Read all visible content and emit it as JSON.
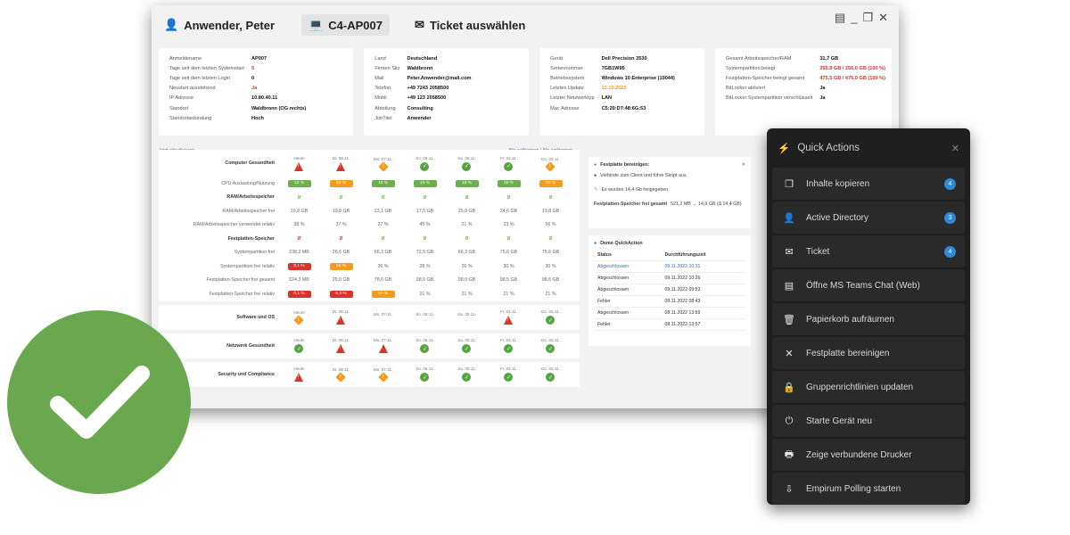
{
  "header": {
    "user_name": "Anwender, Peter",
    "device": "C4-AP007",
    "ticket_label": "Ticket auswählen"
  },
  "card1": [
    {
      "k": "Anmeldename",
      "v": "AP007",
      "c": ""
    },
    {
      "k": "Tage seit dem letzten Systemstart",
      "v": "5",
      "c": "red"
    },
    {
      "k": "Tage seit dem letzten Login",
      "v": "0",
      "c": ""
    },
    {
      "k": "Neustart ausstehend",
      "v": "Ja",
      "c": "red"
    },
    {
      "k": "IP Adresse",
      "v": "10.80.40.11",
      "c": ""
    },
    {
      "k": "Standort",
      "v": "Waldbronn (OG rechts)",
      "c": ""
    },
    {
      "k": "Standortanbindung",
      "v": "Hoch",
      "c": ""
    }
  ],
  "card2": [
    {
      "k": "Land",
      "v": "Deutschland"
    },
    {
      "k": "Firmen Sitz",
      "v": "Waldbronn"
    },
    {
      "k": "Mail",
      "v": "Peter.Anwender@mail.com"
    },
    {
      "k": "Telefon",
      "v": "+49 7243 2058500"
    },
    {
      "k": "Mobil",
      "v": "+49 123 2058500"
    },
    {
      "k": "Abteilung",
      "v": "Consulting"
    },
    {
      "k": "JobTitel",
      "v": "Anwender"
    }
  ],
  "card3": [
    {
      "k": "Gerät",
      "v": "Dell Precision 3530",
      "c": ""
    },
    {
      "k": "Seriennummer",
      "v": "7GB1W95",
      "c": ""
    },
    {
      "k": "Betriebssystem",
      "v": "Windows 10 Enterprise (19044)",
      "c": ""
    },
    {
      "k": "Letztes Update",
      "v": "12.10.2022",
      "c": "orange"
    },
    {
      "k": "Letzter Netzwerktyp",
      "v": "LAN",
      "c": ""
    },
    {
      "k": "Mac Adresse",
      "v": "C5:20:D7:48:6G:53",
      "c": ""
    }
  ],
  "card4": [
    {
      "k": "Gesamt Arbeitsspeicher/RAM",
      "v": "31,7 GB",
      "c": ""
    },
    {
      "k": "Systempartition belegt",
      "v": "255,8 GB / 256,0 GB (100 %)",
      "c": "red"
    },
    {
      "k": "Festplatten-Speicher belegt gesamt",
      "v": "475,5 GB / 476,0 GB (100 %)",
      "c": "red"
    },
    {
      "k": "BitLocker aktiviert",
      "v": "Ja",
      "c": ""
    },
    {
      "k": "BitLocker Systempartition verschlüsselt",
      "v": "Ja",
      "c": ""
    }
  ],
  "subbar": {
    "left": "Jetzt aktualisieren",
    "right": "Alle aufklappen | Alle einklappen"
  },
  "dates": [
    "Heute",
    "Di. 08.11.",
    "Mo. 07.11.",
    "So. 06.11.",
    "Sa. 05.11.",
    "Fr. 04.11.",
    "Do. 03.11."
  ],
  "health": {
    "title": "Computer Gesundheit",
    "status": [
      "tri",
      "tri",
      "warn",
      "ok",
      "ok",
      "ok",
      "warn"
    ],
    "rows": [
      {
        "label": "CPU Auslastung/Nutzung",
        "type": "pill",
        "values": [
          [
            "12 %",
            "g"
          ],
          [
            "20 %",
            "o"
          ],
          [
            "18 %",
            "g"
          ],
          [
            "15 %",
            "g"
          ],
          [
            "18 %",
            "g"
          ],
          [
            "19 %",
            "g"
          ],
          [
            "20 %",
            "o"
          ]
        ]
      },
      {
        "label": "RAM/Arbeitsspeicher",
        "type": "leaf",
        "head": true,
        "values": [
          "g",
          "g",
          "g",
          "g",
          "g",
          "g",
          "g"
        ]
      },
      {
        "label": "RAM/Arbeitsspeicher frei",
        "type": "text",
        "values": [
          "19,8 GB",
          "19,8 GB",
          "23,1 GB",
          "17,5 GB",
          "25,0 GB",
          "24,6 GB",
          "13,8 GB"
        ]
      },
      {
        "label": "RAM/Arbeitsspeicher verwendet relativ",
        "type": "text",
        "values": [
          "38 %",
          "37 %",
          "27 %",
          "45 %",
          "21 %",
          "23 %",
          "56 %"
        ]
      },
      {
        "label": "Festplatten-Speicher",
        "type": "leaf",
        "head": true,
        "values": [
          "r",
          "r",
          "g",
          "g",
          "g",
          "g",
          "g"
        ]
      },
      {
        "label": "Systempartition frei",
        "type": "text",
        "values": [
          "238,2 MB",
          "26,6 GB",
          "66,3 GB",
          "72,5 GB",
          "66,3 GB",
          "75,6 GB",
          "75,6 GB"
        ]
      },
      {
        "label": "Systempartition frei relativ",
        "type": "mixed",
        "values": [
          [
            "0,1 %",
            "r"
          ],
          [
            "10 %",
            "o"
          ],
          [
            "26 %",
            ""
          ],
          [
            "28 %",
            ""
          ],
          [
            "26 %",
            ""
          ],
          [
            "30 %",
            ""
          ],
          [
            "30 %",
            ""
          ]
        ]
      },
      {
        "label": "Festplatten-Speicher frei gesamt",
        "type": "text",
        "values": [
          "524,3 MB",
          "25,0 GB",
          "78,6 GB",
          "98,5 GB",
          "98,0 GB",
          "98,5 GB",
          "98,6 GB"
        ]
      },
      {
        "label": "Festplatten-Speicher frei relativ",
        "type": "mixed",
        "values": [
          [
            "0,1 %",
            "r"
          ],
          [
            "5,3 %",
            "r"
          ],
          [
            "17 %",
            "o"
          ],
          [
            "21 %",
            ""
          ],
          [
            "21 %",
            ""
          ],
          [
            "21 %",
            ""
          ],
          [
            "21 %",
            ""
          ]
        ]
      }
    ]
  },
  "sections": [
    {
      "title": "Software und OS",
      "status": [
        "warn",
        "tri",
        "dash",
        "dash",
        "dash",
        "tri",
        "ok"
      ]
    },
    {
      "title": "Netzwerk Gesundheit",
      "status": [
        "ok",
        "tri",
        "tri",
        "ok",
        "ok",
        "ok",
        "ok"
      ]
    },
    {
      "title": "Security und Compliance",
      "status": [
        "tri",
        "warn",
        "warn",
        "ok",
        "ok",
        "ok",
        "ok"
      ]
    }
  ],
  "cleanup": {
    "title": "Festplatte bereinigen:",
    "step": "Verbinde zum Client und führe Skript aus.",
    "freed": "Es wurden 14,4 Gb freigegeben.",
    "total_label": "Festplatten-Speicher frei gesamt",
    "total_value": "521,2 MB → 14,9 GB (Δ 14,4 GB)"
  },
  "demo": {
    "title": "Demo QuickAction",
    "col_status": "Status",
    "col_time": "Durchführungszeit",
    "rows": [
      {
        "s": "Abgeschlossen",
        "t": "09.11.2022 10:31",
        "link": true
      },
      {
        "s": "Abgeschlossen",
        "t": "09.11.2022 10:26",
        "link": false
      },
      {
        "s": "Abgeschlossen",
        "t": "09.11.2022 09:53",
        "link": false
      },
      {
        "s": "Fehler",
        "t": "09.11.2022 08:43",
        "link": false
      },
      {
        "s": "Abgeschlossen",
        "t": "08.11.2022 13:59",
        "link": false
      },
      {
        "s": "Fehler",
        "t": "08.11.2022 13:57",
        "link": false
      }
    ]
  },
  "quick_actions": {
    "title": "Quick Actions",
    "items": [
      {
        "label": "Inhalte kopieren",
        "icon": "copy-icon",
        "glyph": "❐",
        "badge": "4"
      },
      {
        "label": "Active Directory",
        "icon": "user-icon",
        "glyph": "👤",
        "badge": "3"
      },
      {
        "label": "Ticket",
        "icon": "mail-icon",
        "glyph": "✉",
        "badge": "4"
      },
      {
        "label": "Öffne MS Teams Chat (Web)",
        "icon": "chat-icon",
        "glyph": "▤",
        "badge": ""
      },
      {
        "label": "Papierkorb aufräumen",
        "icon": "trash-icon",
        "glyph": "🗑",
        "badge": ""
      },
      {
        "label": "Festplatte bereinigen",
        "icon": "tools-icon",
        "glyph": "✕",
        "badge": ""
      },
      {
        "label": "Gruppenrichtlinien updaten",
        "icon": "lock-icon",
        "glyph": "🔒",
        "badge": ""
      },
      {
        "label": "Starte Gerät neu",
        "icon": "power-icon",
        "glyph": "⏻",
        "badge": ""
      },
      {
        "label": "Zeige verbundene Drucker",
        "icon": "printer-icon",
        "glyph": "🖶",
        "badge": ""
      },
      {
        "label": "Empirum Polling starten",
        "icon": "download-icon",
        "glyph": "⇩",
        "badge": ""
      }
    ]
  }
}
